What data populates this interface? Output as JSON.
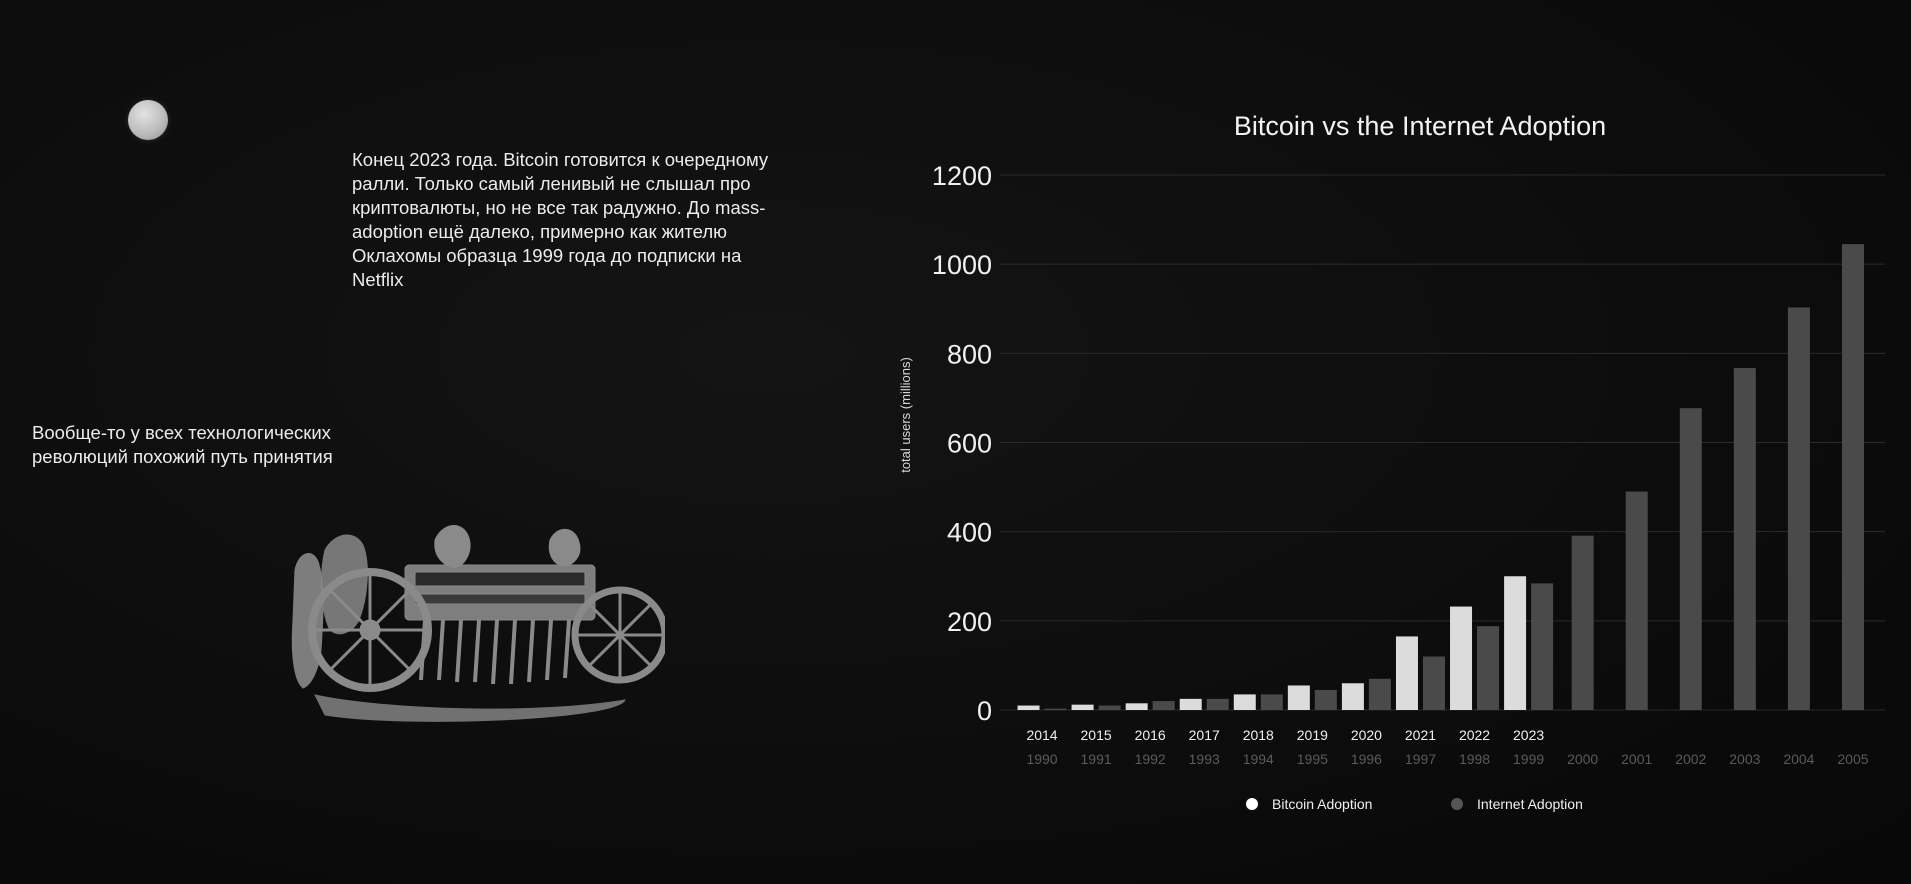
{
  "intro": {
    "paragraph_top": "Конец 2023 года. Bitcoin готовится к очередному ралли. Только самый ленивый не слышал про криптовалюты, но не все так радужно. До mass-adoption ещё далеко, примерно как жителю Оклахомы образца 1999 года до подписки на Netflix",
    "paragraph_left": "Вообще-то у всех технологических революций похожий путь принятия"
  },
  "colors": {
    "background": "#0c0c0c",
    "bitcoin_bar": "#dcdcdc",
    "internet_bar": "#4a4a4a",
    "gridline": "#2a2a2a"
  },
  "chart_data": {
    "type": "bar",
    "title": "Bitcoin vs the Internet Adoption",
    "ylabel": "total users (millions)",
    "ylim": [
      0,
      1200
    ],
    "yticks": [
      0,
      200,
      400,
      600,
      800,
      1000,
      1200
    ],
    "grid": true,
    "legend_position": "bottom",
    "categories_bitcoin": [
      "2014",
      "2015",
      "2016",
      "2017",
      "2018",
      "2019",
      "2020",
      "2021",
      "2022",
      "2023",
      "",
      "",
      "",
      "",
      "",
      ""
    ],
    "categories_internet": [
      "1990",
      "1991",
      "1992",
      "1993",
      "1994",
      "1995",
      "1996",
      "1997",
      "1998",
      "1999",
      "2000",
      "2001",
      "2002",
      "2003",
      "2004",
      "2005"
    ],
    "series": [
      {
        "name": "Bitcoin Adoption",
        "color": "#dcdcdc",
        "values": [
          10,
          12,
          15,
          25,
          35,
          55,
          60,
          165,
          232,
          300,
          null,
          null,
          null,
          null,
          null,
          null
        ]
      },
      {
        "name": "Internet Adoption",
        "color": "#4a4a4a",
        "values": [
          3,
          10,
          20,
          25,
          35,
          45,
          70,
          120,
          188,
          284,
          391,
          490,
          677,
          767,
          903,
          1045
        ]
      }
    ]
  }
}
